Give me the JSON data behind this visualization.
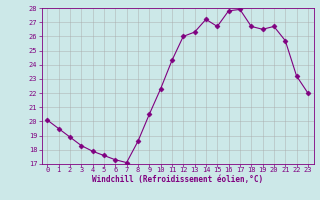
{
  "x": [
    0,
    1,
    2,
    3,
    4,
    5,
    6,
    7,
    8,
    9,
    10,
    11,
    12,
    13,
    14,
    15,
    16,
    17,
    18,
    19,
    20,
    21,
    22,
    23
  ],
  "y": [
    20.1,
    19.5,
    18.9,
    18.3,
    17.9,
    17.6,
    17.3,
    17.1,
    18.6,
    20.5,
    22.3,
    24.3,
    26.0,
    26.3,
    27.2,
    26.7,
    27.8,
    27.9,
    26.7,
    26.5,
    26.7,
    25.7,
    23.2,
    22.0
  ],
  "line_color": "#800080",
  "marker": "D",
  "marker_size": 2.5,
  "bg_color": "#cce8e8",
  "grid_color": "#aaaaaa",
  "xlabel": "Windchill (Refroidissement éolien,°C)",
  "xlabel_color": "#800080",
  "tick_color": "#800080",
  "ylim": [
    17,
    28
  ],
  "xlim": [
    -0.5,
    23.5
  ],
  "yticks": [
    17,
    18,
    19,
    20,
    21,
    22,
    23,
    24,
    25,
    26,
    27,
    28
  ],
  "xticks": [
    0,
    1,
    2,
    3,
    4,
    5,
    6,
    7,
    8,
    9,
    10,
    11,
    12,
    13,
    14,
    15,
    16,
    17,
    18,
    19,
    20,
    21,
    22,
    23
  ]
}
